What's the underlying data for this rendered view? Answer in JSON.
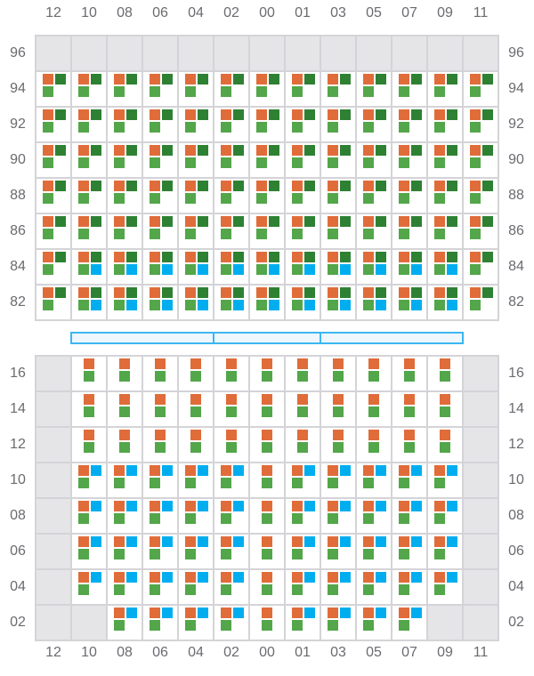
{
  "columns": [
    "12",
    "10",
    "08",
    "06",
    "04",
    "02",
    "00",
    "01",
    "03",
    "05",
    "07",
    "09",
    "11"
  ],
  "colors": {
    "orange": "#E06C3A",
    "dark_green": "#2E8133",
    "light_green": "#53A64A",
    "blue": "#00AEEF",
    "unavailable": "#E5E5E7",
    "grid_line": "#D4D4D8",
    "bar_border": "#3AB8F0"
  },
  "cell_types": {
    "X": "unavailable",
    "A": [
      "orange",
      "dark_green",
      "light_green"
    ],
    "B": [
      "orange",
      "dark_green",
      "light_green",
      "blue"
    ],
    "C": [
      "orange",
      "light_green"
    ],
    "D": [
      "orange",
      "blue",
      "light_green"
    ]
  },
  "top_section": {
    "rows": [
      {
        "label": "96",
        "cells": [
          "X",
          "X",
          "X",
          "X",
          "X",
          "X",
          "X",
          "X",
          "X",
          "X",
          "X",
          "X",
          "X"
        ]
      },
      {
        "label": "94",
        "cells": [
          "A",
          "A",
          "A",
          "A",
          "A",
          "A",
          "A",
          "A",
          "A",
          "A",
          "A",
          "A",
          "A"
        ]
      },
      {
        "label": "92",
        "cells": [
          "A",
          "A",
          "A",
          "A",
          "A",
          "A",
          "A",
          "A",
          "A",
          "A",
          "A",
          "A",
          "A"
        ]
      },
      {
        "label": "90",
        "cells": [
          "A",
          "A",
          "A",
          "A",
          "A",
          "A",
          "A",
          "A",
          "A",
          "A",
          "A",
          "A",
          "A"
        ]
      },
      {
        "label": "88",
        "cells": [
          "A",
          "A",
          "A",
          "A",
          "A",
          "A",
          "A",
          "A",
          "A",
          "A",
          "A",
          "A",
          "A"
        ]
      },
      {
        "label": "86",
        "cells": [
          "A",
          "A",
          "A",
          "A",
          "A",
          "A",
          "A",
          "A",
          "A",
          "A",
          "A",
          "A",
          "A"
        ]
      },
      {
        "label": "84",
        "cells": [
          "A",
          "B",
          "B",
          "B",
          "B",
          "B",
          "B",
          "B",
          "B",
          "B",
          "B",
          "B",
          "A"
        ]
      },
      {
        "label": "82",
        "cells": [
          "A",
          "B",
          "B",
          "B",
          "B",
          "B",
          "B",
          "B",
          "B",
          "B",
          "B",
          "B",
          "A"
        ]
      }
    ]
  },
  "divider_segments": 3,
  "bottom_section": {
    "rows": [
      {
        "label": "16",
        "cells": [
          "X",
          "C",
          "C",
          "C",
          "C",
          "C",
          "C",
          "C",
          "C",
          "C",
          "C",
          "C",
          "X"
        ]
      },
      {
        "label": "14",
        "cells": [
          "X",
          "C",
          "C",
          "C",
          "C",
          "C",
          "C",
          "C",
          "C",
          "C",
          "C",
          "C",
          "X"
        ]
      },
      {
        "label": "12",
        "cells": [
          "X",
          "C",
          "C",
          "C",
          "C",
          "C",
          "C",
          "C",
          "C",
          "C",
          "C",
          "C",
          "X"
        ]
      },
      {
        "label": "10",
        "cells": [
          "X",
          "D",
          "D",
          "D",
          "D",
          "D",
          "C",
          "D",
          "D",
          "D",
          "D",
          "D",
          "X"
        ]
      },
      {
        "label": "08",
        "cells": [
          "X",
          "D",
          "D",
          "D",
          "D",
          "D",
          "C",
          "D",
          "D",
          "D",
          "D",
          "D",
          "X"
        ]
      },
      {
        "label": "06",
        "cells": [
          "X",
          "D",
          "D",
          "D",
          "D",
          "D",
          "C",
          "D",
          "D",
          "D",
          "D",
          "D",
          "X"
        ]
      },
      {
        "label": "04",
        "cells": [
          "X",
          "D",
          "D",
          "D",
          "D",
          "D",
          "C",
          "D",
          "D",
          "D",
          "D",
          "D",
          "X"
        ]
      },
      {
        "label": "02",
        "cells": [
          "X",
          "X",
          "D",
          "D",
          "D",
          "D",
          "C",
          "D",
          "D",
          "D",
          "D",
          "X",
          "X"
        ]
      }
    ]
  }
}
